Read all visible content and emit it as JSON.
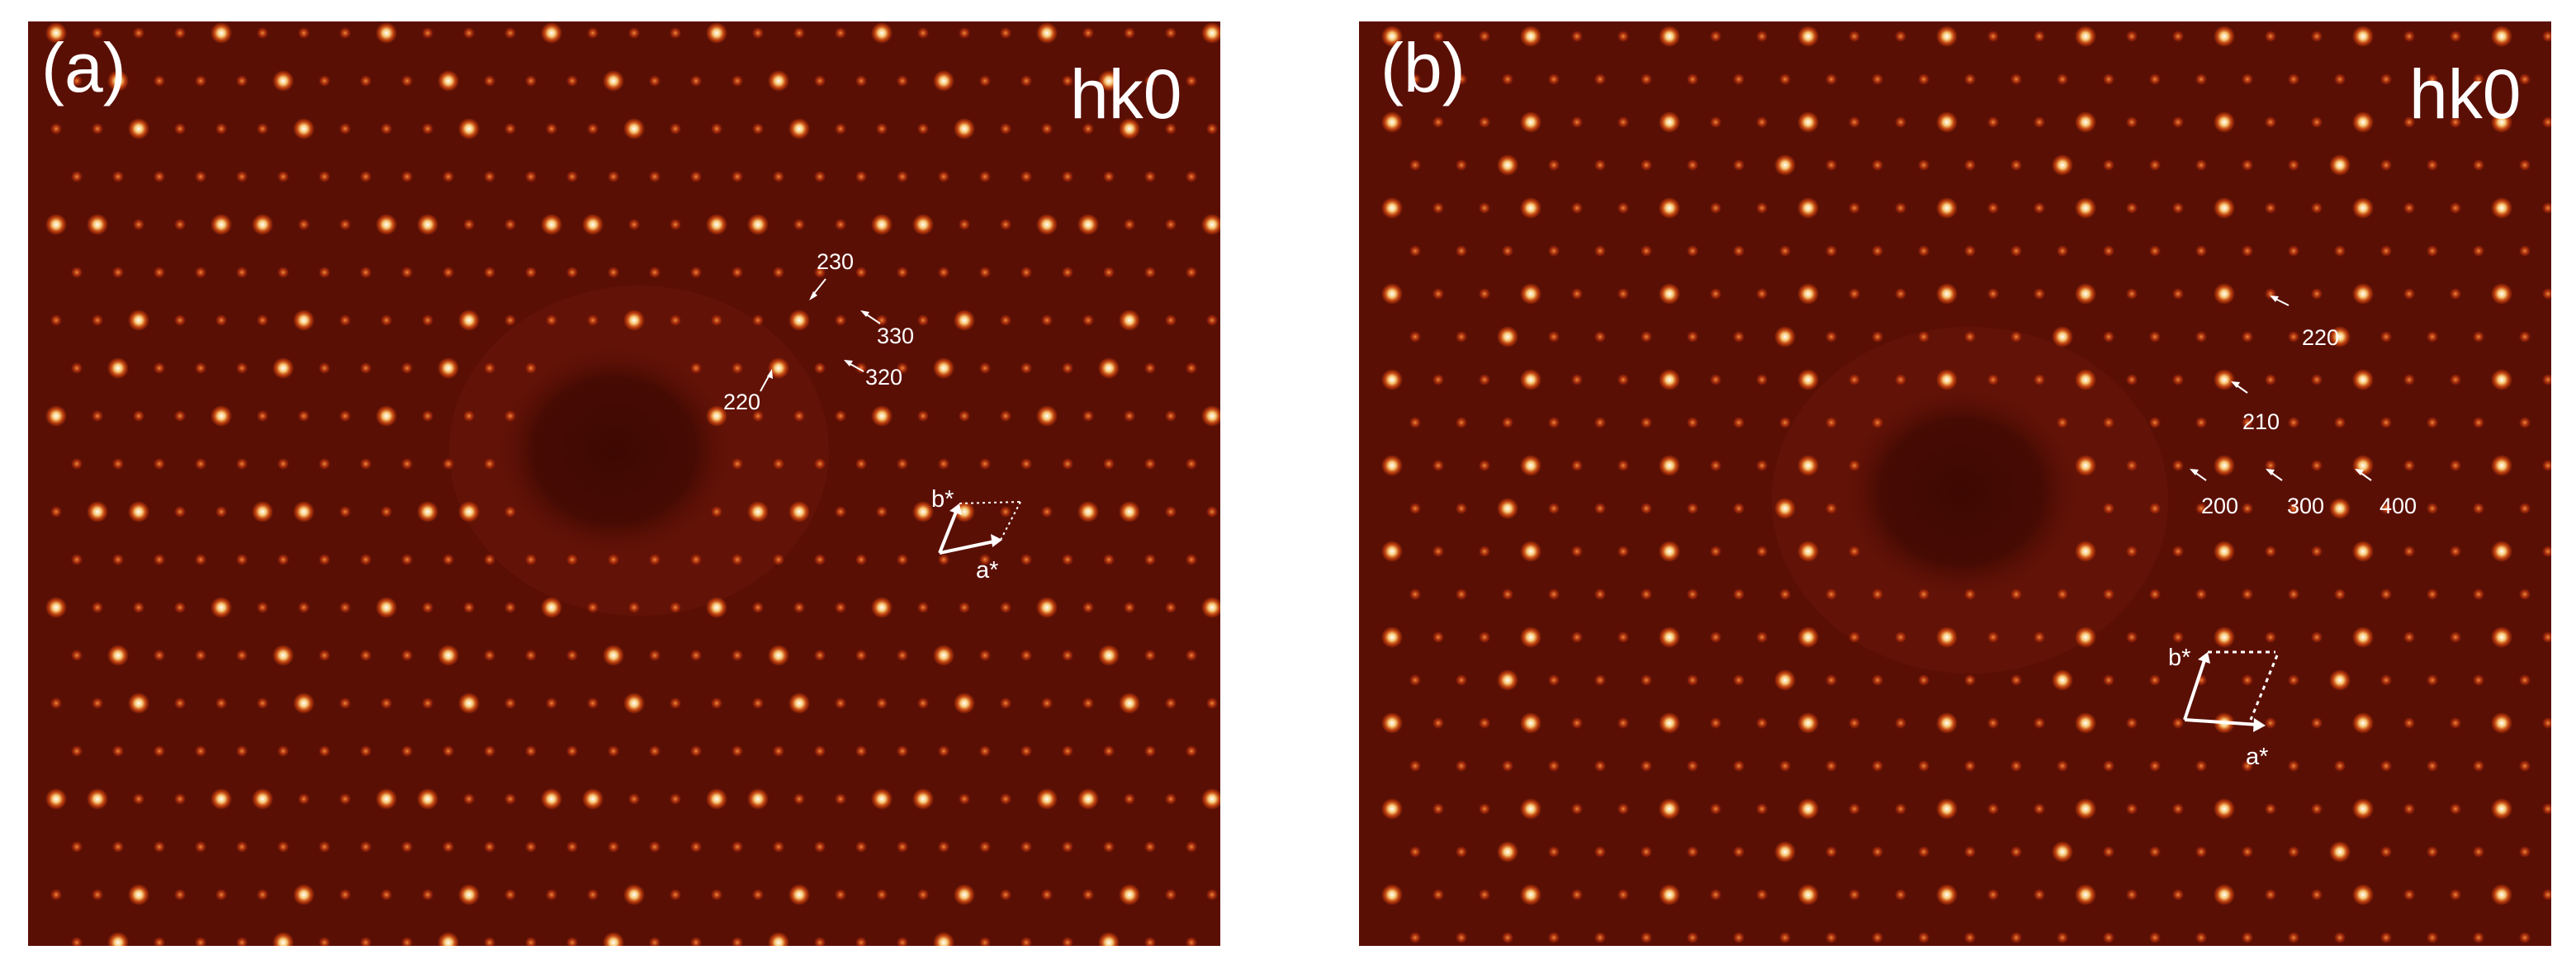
{
  "panels": [
    {
      "id": "a",
      "label": "(a)",
      "plane": "hk0",
      "reflections": [
        "230",
        "330",
        "320",
        "220"
      ],
      "axes": {
        "a": "a*",
        "b": "b*"
      }
    },
    {
      "id": "b",
      "label": "(b)",
      "plane": "hk0",
      "reflections": [
        "220",
        "210",
        "200",
        "300",
        "400"
      ],
      "axes": {
        "a": "a*",
        "b": "b*"
      }
    }
  ],
  "colors": {
    "background": "#5a0f05",
    "dark_center": "#3e0902",
    "spot_core": "#ffffff",
    "spot_glow": "#ff7a1a",
    "annotation": "#ffffff"
  }
}
